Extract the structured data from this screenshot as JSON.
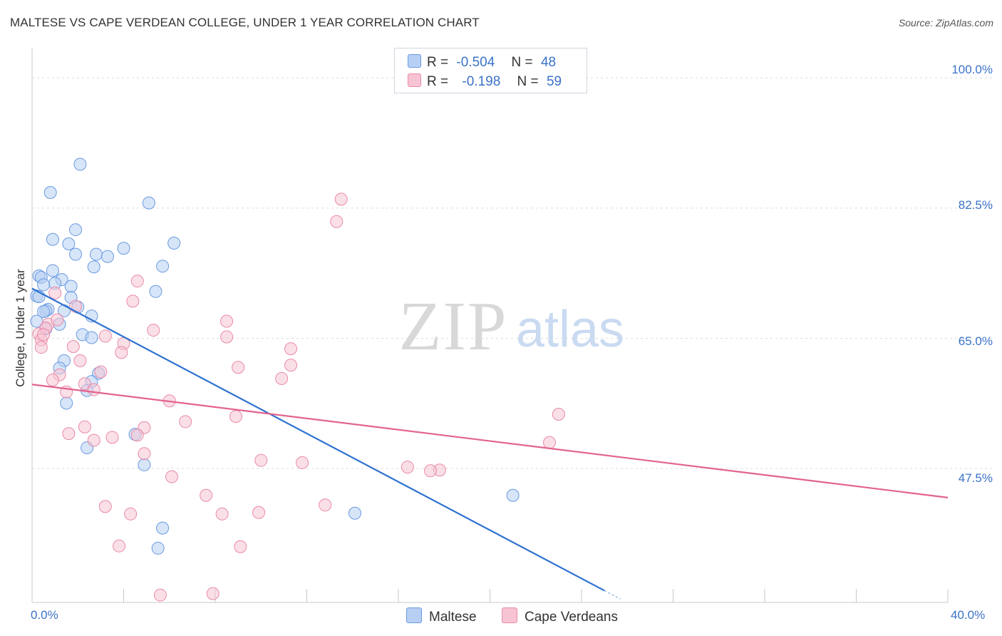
{
  "header": {
    "title": "MALTESE VS CAPE VERDEAN COLLEGE, UNDER 1 YEAR CORRELATION CHART",
    "source": "Source: ZipAtlas.com"
  },
  "legend": {
    "maltese": {
      "r_label": "R =",
      "r_value": "-0.504",
      "n_label": "N =",
      "n_value": "48"
    },
    "cape": {
      "r_label": "R =",
      "r_value": "-0.198",
      "n_label": "N =",
      "n_value": "59"
    }
  },
  "watermark": {
    "zip": "ZIP",
    "atlas": "atlas"
  },
  "chart_data": {
    "type": "scatter",
    "title": "MALTESE VS CAPE VERDEAN COLLEGE, UNDER 1 YEAR CORRELATION CHART",
    "xlabel": "",
    "ylabel": "College, Under 1 year",
    "xlim": [
      0,
      40
    ],
    "ylim": [
      29.5,
      103
    ],
    "x_tick_labels": [
      "0.0%",
      "40.0%"
    ],
    "y_ticks": [
      {
        "value": 100.0,
        "label": "100.0%"
      },
      {
        "value": 82.5,
        "label": "82.5%"
      },
      {
        "value": 65.0,
        "label": "65.0%"
      },
      {
        "value": 47.5,
        "label": "47.5%"
      }
    ],
    "grid": true,
    "series": [
      {
        "name": "Maltese",
        "color": "#6a9ae0",
        "fill": "#b7cff3",
        "trend": {
          "x": [
            0.0,
            25.0
          ],
          "y": [
            71.7,
            31.1
          ],
          "color": "#2f72d0"
        },
        "points": [
          [
            2.1,
            88.4
          ],
          [
            0.8,
            84.6
          ],
          [
            5.1,
            83.2
          ],
          [
            1.9,
            79.6
          ],
          [
            0.9,
            78.3
          ],
          [
            1.6,
            77.7
          ],
          [
            6.2,
            77.8
          ],
          [
            4.0,
            77.1
          ],
          [
            1.9,
            76.3
          ],
          [
            2.8,
            76.3
          ],
          [
            3.3,
            76.0
          ],
          [
            2.7,
            74.6
          ],
          [
            5.7,
            74.7
          ],
          [
            0.9,
            74.1
          ],
          [
            0.3,
            73.4
          ],
          [
            0.4,
            73.2
          ],
          [
            1.3,
            72.9
          ],
          [
            1.0,
            72.4
          ],
          [
            0.5,
            72.2
          ],
          [
            1.7,
            72.0
          ],
          [
            5.4,
            71.3
          ],
          [
            0.2,
            70.7
          ],
          [
            0.3,
            70.6
          ],
          [
            1.7,
            70.5
          ],
          [
            2.0,
            69.2
          ],
          [
            0.7,
            68.9
          ],
          [
            0.6,
            68.7
          ],
          [
            0.5,
            68.6
          ],
          [
            1.4,
            68.7
          ],
          [
            2.6,
            68.0
          ],
          [
            1.2,
            66.9
          ],
          [
            0.6,
            66.3
          ],
          [
            2.2,
            65.5
          ],
          [
            2.6,
            65.1
          ],
          [
            1.4,
            62.0
          ],
          [
            1.2,
            61.0
          ],
          [
            2.9,
            60.3
          ],
          [
            2.6,
            59.2
          ],
          [
            2.4,
            58.0
          ],
          [
            1.5,
            56.3
          ],
          [
            4.5,
            52.1
          ],
          [
            2.4,
            50.3
          ],
          [
            4.9,
            48.0
          ],
          [
            14.1,
            41.5
          ],
          [
            21.0,
            43.9
          ],
          [
            5.7,
            39.5
          ],
          [
            5.5,
            36.8
          ],
          [
            0.2,
            67.3
          ]
        ]
      },
      {
        "name": "Cape Verdeans",
        "color": "#e98aa7",
        "fill": "#f6c4d3",
        "trend": {
          "x": [
            0.0,
            40.0
          ],
          "y": [
            58.8,
            43.6
          ],
          "color": "#e2648e"
        },
        "points": [
          [
            13.5,
            83.7
          ],
          [
            13.3,
            80.7
          ],
          [
            4.6,
            72.7
          ],
          [
            4.4,
            70.0
          ],
          [
            1.0,
            71.1
          ],
          [
            1.9,
            69.3
          ],
          [
            8.5,
            67.3
          ],
          [
            0.7,
            66.9
          ],
          [
            0.6,
            66.4
          ],
          [
            5.3,
            66.1
          ],
          [
            0.3,
            65.6
          ],
          [
            3.2,
            65.3
          ],
          [
            8.5,
            65.2
          ],
          [
            0.4,
            64.8
          ],
          [
            4.0,
            64.3
          ],
          [
            1.8,
            63.9
          ],
          [
            11.3,
            63.6
          ],
          [
            0.4,
            63.8
          ],
          [
            3.9,
            63.1
          ],
          [
            2.1,
            62.0
          ],
          [
            9.0,
            61.1
          ],
          [
            11.3,
            61.4
          ],
          [
            3.0,
            60.5
          ],
          [
            1.2,
            60.1
          ],
          [
            0.9,
            59.4
          ],
          [
            10.9,
            59.6
          ],
          [
            2.3,
            58.9
          ],
          [
            2.7,
            58.1
          ],
          [
            1.5,
            57.8
          ],
          [
            6.0,
            56.6
          ],
          [
            8.9,
            54.5
          ],
          [
            6.7,
            53.8
          ],
          [
            2.3,
            53.1
          ],
          [
            4.9,
            53.0
          ],
          [
            1.6,
            52.2
          ],
          [
            4.6,
            52.0
          ],
          [
            3.5,
            51.7
          ],
          [
            2.7,
            51.3
          ],
          [
            23.0,
            54.8
          ],
          [
            22.6,
            51.0
          ],
          [
            4.9,
            49.5
          ],
          [
            10.0,
            48.6
          ],
          [
            11.8,
            48.3
          ],
          [
            16.4,
            47.7
          ],
          [
            17.8,
            47.3
          ],
          [
            17.4,
            47.2
          ],
          [
            6.1,
            46.4
          ],
          [
            7.6,
            43.9
          ],
          [
            12.8,
            42.6
          ],
          [
            3.2,
            42.4
          ],
          [
            4.3,
            41.4
          ],
          [
            8.3,
            41.4
          ],
          [
            9.9,
            41.6
          ],
          [
            3.8,
            37.1
          ],
          [
            9.1,
            37.0
          ],
          [
            5.6,
            30.5
          ],
          [
            7.9,
            30.7
          ],
          [
            0.5,
            65.5
          ],
          [
            1.1,
            67.5
          ]
        ]
      }
    ],
    "legend_entries": [
      "Maltese",
      "Cape Verdeans"
    ],
    "legend_position": "top-center"
  }
}
